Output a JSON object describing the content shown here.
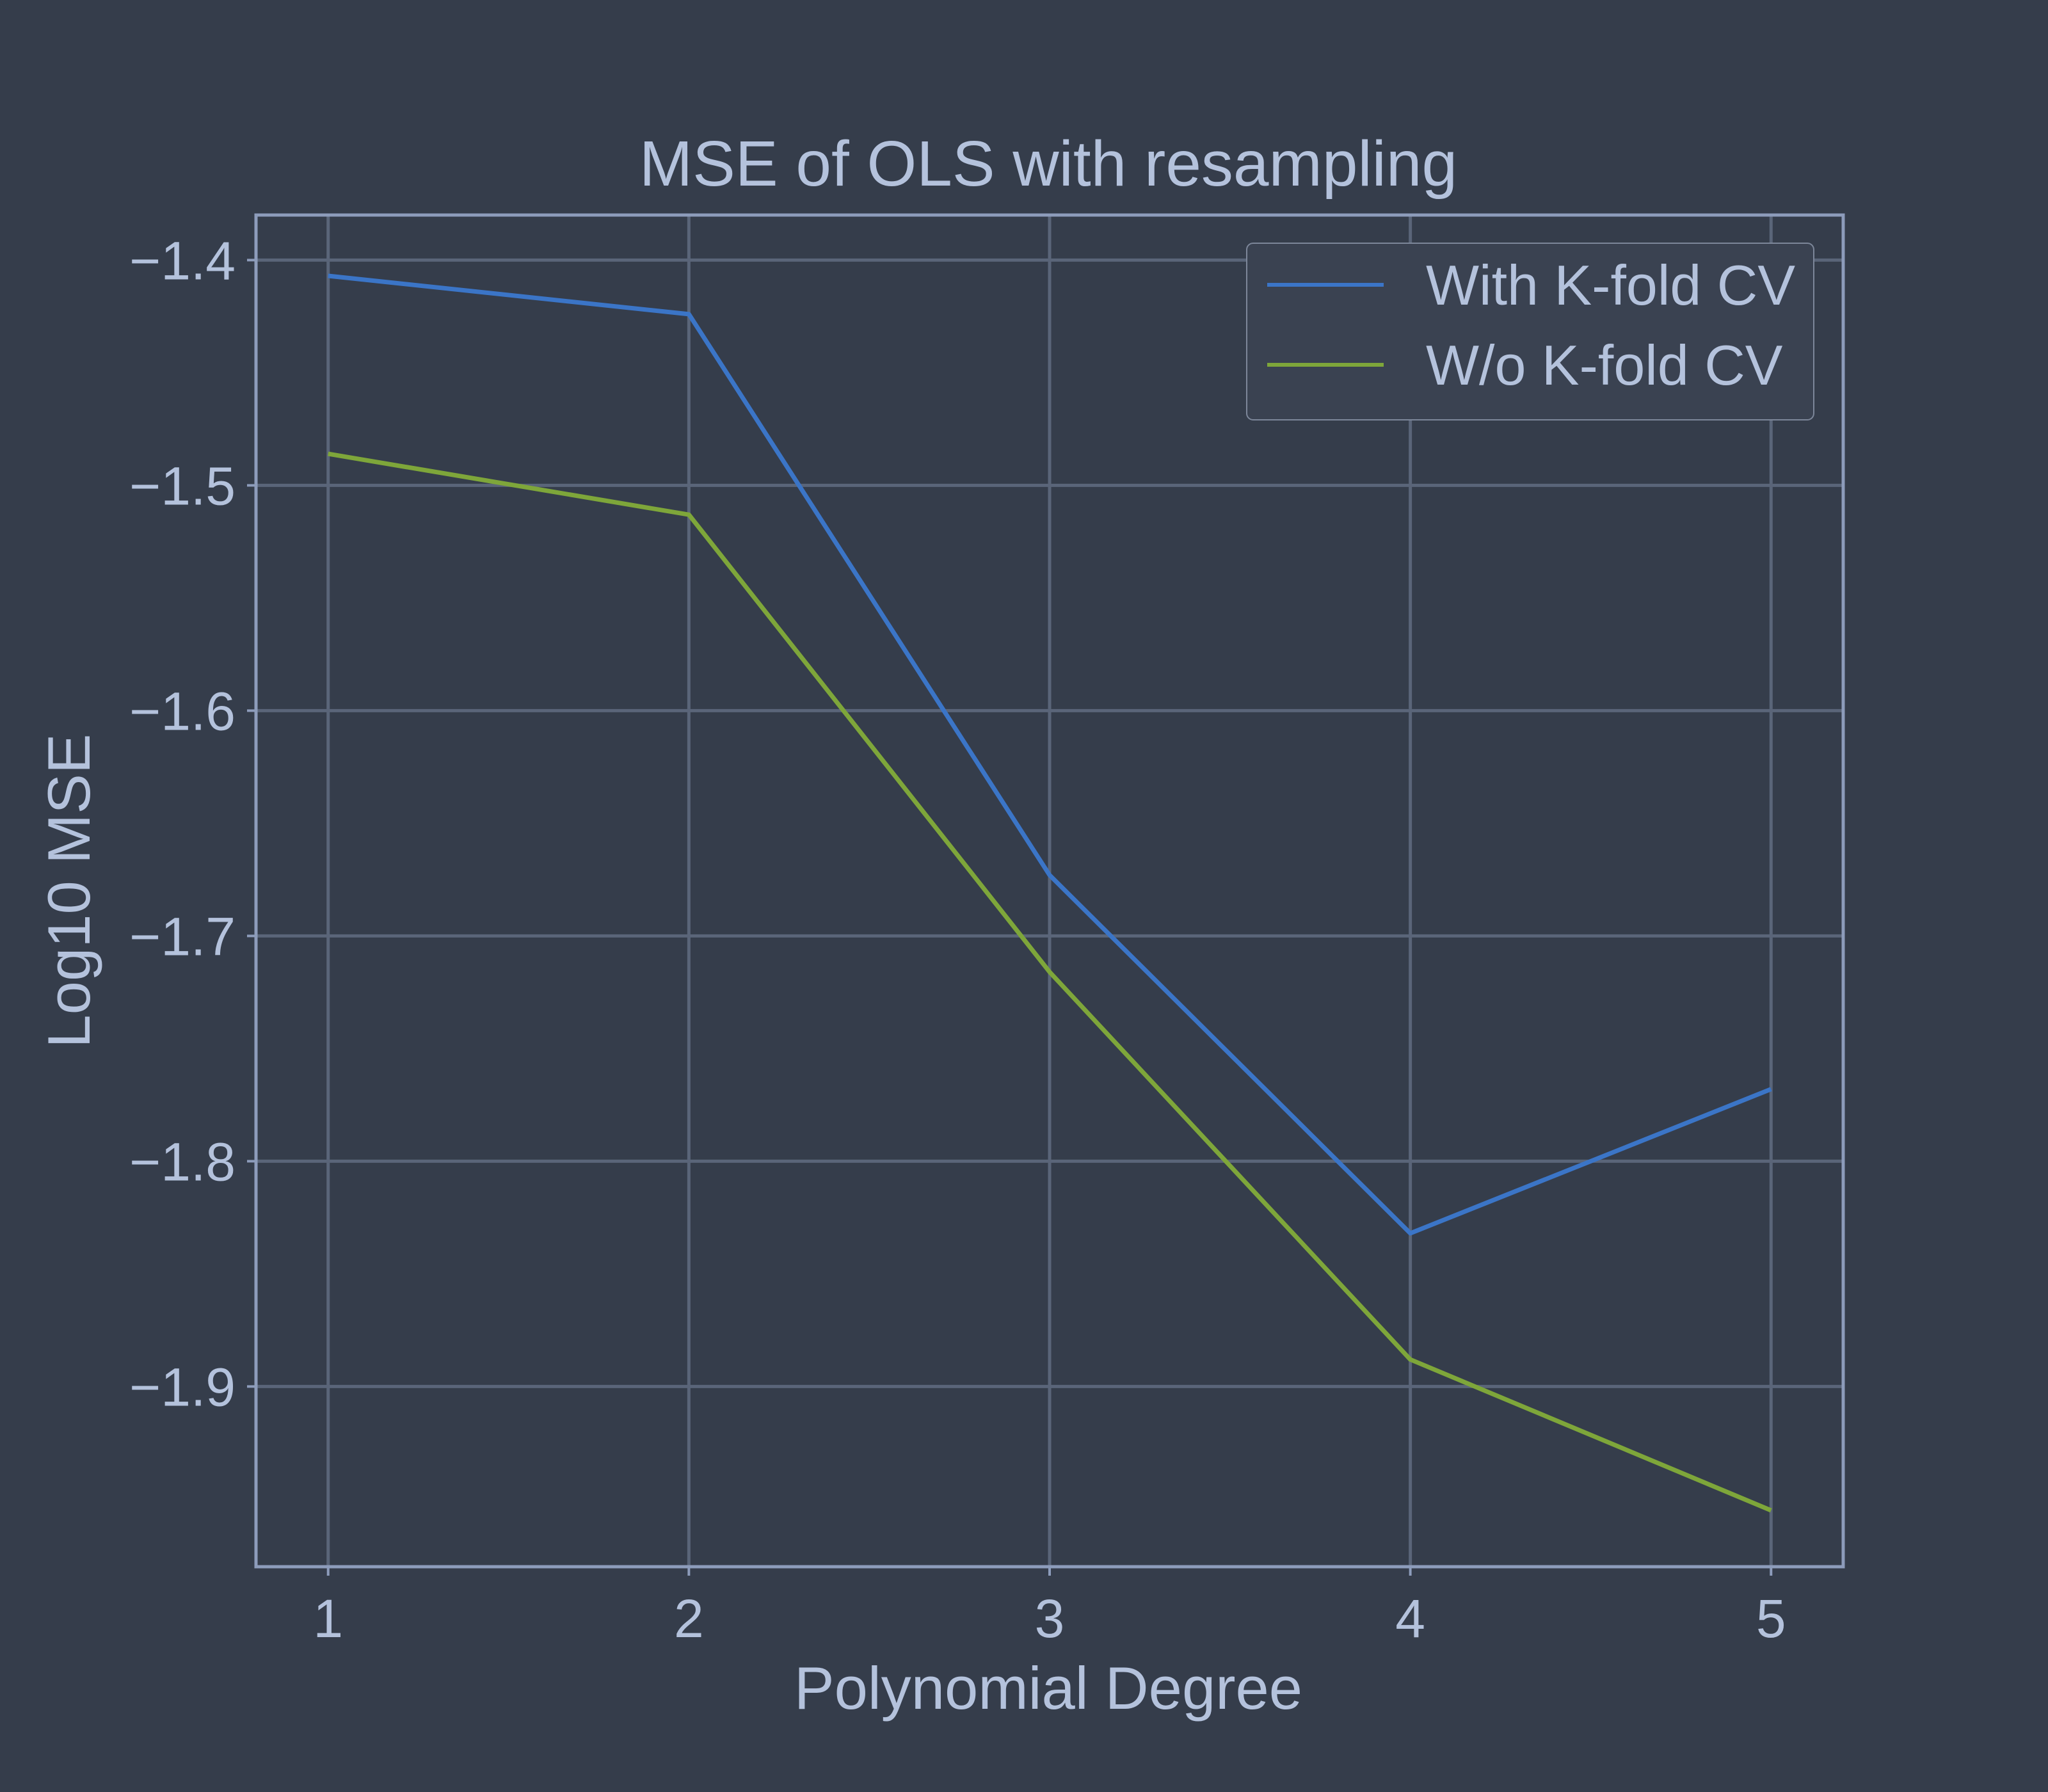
{
  "chart_data": {
    "type": "line",
    "title": "MSE of OLS with resampling",
    "xlabel": "Polynomial Degree",
    "ylabel": "Log10 MSE",
    "x": [
      1,
      2,
      3,
      4,
      5
    ],
    "xticks": [
      "1",
      "2",
      "3",
      "4",
      "5"
    ],
    "yticks": [
      "−1.4",
      "−1.5",
      "−1.6",
      "−1.7",
      "−1.8",
      "−1.9"
    ],
    "ytick_values": [
      -1.4,
      -1.5,
      -1.6,
      -1.7,
      -1.8,
      -1.9
    ],
    "xlim": [
      0.8,
      5.2
    ],
    "ylim": [
      -1.98,
      -1.38
    ],
    "grid": true,
    "legend_position": "top-right",
    "series": [
      {
        "name": "With K-fold CV",
        "color": "#3b75c7",
        "values": [
          -1.407,
          -1.424,
          -1.673,
          -1.832,
          -1.768
        ]
      },
      {
        "name": "W/o K-fold CV",
        "color": "#7ea63a",
        "values": [
          -1.486,
          -1.513,
          -1.716,
          -1.888,
          -1.955
        ]
      }
    ],
    "colors": {
      "background": "#353d4b",
      "axes_frame": "#8d9cbb",
      "grid": "#5a6579",
      "text": "#b4c2dc",
      "legend_border": "#7d879a"
    }
  }
}
